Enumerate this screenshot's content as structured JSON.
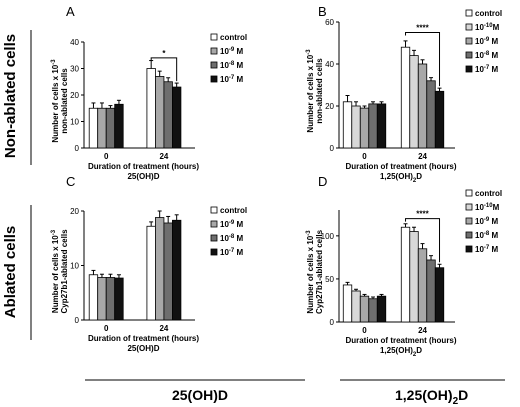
{
  "row_labels": [
    "Non-ablated cells",
    "Ablated cells"
  ],
  "bottom_labels": {
    "left": {
      "main": "25(OH)D",
      "sub": ""
    },
    "right": {
      "main": "1,25(OH)",
      "sub": "2",
      "tail": "D"
    }
  },
  "colors": {
    "control": "#ffffff",
    "c1": "#d8d8d8",
    "c2": "#a8a8a8",
    "c3": "#6e6e6e",
    "c4": "#111111"
  },
  "chart_data": [
    {
      "panel": "A",
      "type": "bar",
      "ylabel": [
        "Number of cells x 10",
        "non-ablated cells"
      ],
      "ylabel_sup": "-3",
      "xlabel": "Duration of treatment (hours)",
      "compound": {
        "main": "25(OH)D",
        "sub": "",
        "tail": ""
      },
      "categories": [
        "0",
        "24"
      ],
      "ylim": [
        0,
        40
      ],
      "yticks": [
        "0",
        "10",
        "20",
        "30",
        "40"
      ],
      "legend": [
        {
          "base": "control",
          "exp": ""
        },
        {
          "base": "10",
          "exp": "-9",
          "unit": " M"
        },
        {
          "base": "10",
          "exp": "-8",
          "unit": " M"
        },
        {
          "base": "10",
          "exp": "-7",
          "unit": " M"
        }
      ],
      "series": [
        {
          "name": "control",
          "color": "control",
          "values": [
            15,
            30
          ],
          "err": [
            2,
            3
          ]
        },
        {
          "name": "10-9 M",
          "color": "c2",
          "values": [
            15,
            27
          ],
          "err": [
            2,
            2
          ]
        },
        {
          "name": "10-8 M",
          "color": "c3",
          "values": [
            15,
            25
          ],
          "err": [
            1,
            1.5
          ]
        },
        {
          "name": "10-7 M",
          "color": "c4",
          "values": [
            16.5,
            23
          ],
          "err": [
            1.5,
            1.5
          ]
        }
      ],
      "sig": {
        "label": "*",
        "from": 0,
        "to": 3,
        "group": 1,
        "y": 34
      }
    },
    {
      "panel": "B",
      "type": "bar",
      "ylabel": [
        "Number of cells x 10",
        "non-ablated cells"
      ],
      "ylabel_sup": "-3",
      "xlabel": "Duration of treatment (hours)",
      "compound": {
        "main": "1,25(OH)",
        "sub": "2",
        "tail": "D"
      },
      "categories": [
        "0",
        "24"
      ],
      "ylim": [
        0,
        60
      ],
      "yticks": [
        "0",
        "20",
        "40",
        "60"
      ],
      "legend": [
        {
          "base": "control",
          "exp": ""
        },
        {
          "base": "10",
          "exp": "-10",
          "unit": "M"
        },
        {
          "base": "10",
          "exp": "-9",
          "unit": " M"
        },
        {
          "base": "10",
          "exp": "-8",
          "unit": " M"
        },
        {
          "base": "10",
          "exp": "-7",
          "unit": " M"
        }
      ],
      "series": [
        {
          "name": "control",
          "color": "control",
          "values": [
            22,
            48
          ],
          "err": [
            3,
            3
          ]
        },
        {
          "name": "10-10M",
          "color": "c1",
          "values": [
            20,
            44
          ],
          "err": [
            2,
            2.5
          ]
        },
        {
          "name": "10-9 M",
          "color": "c2",
          "values": [
            19,
            40
          ],
          "err": [
            1,
            2
          ]
        },
        {
          "name": "10-8 M",
          "color": "c3",
          "values": [
            21,
            32
          ],
          "err": [
            1,
            1.5
          ]
        },
        {
          "name": "10-7 M",
          "color": "c4",
          "values": [
            21,
            27
          ],
          "err": [
            1,
            1.5
          ]
        }
      ],
      "sig": {
        "label": "****",
        "from": 0,
        "to": 4,
        "group": 1,
        "y": 55
      }
    },
    {
      "panel": "C",
      "type": "bar",
      "ylabel": [
        "Number of cells x 10",
        "Cyp27b1-ablated cells"
      ],
      "ylabel_sup": "-3",
      "xlabel": "Duration of treatment (hours)",
      "compound": {
        "main": "25(OH)D",
        "sub": "",
        "tail": ""
      },
      "categories": [
        "0",
        "24"
      ],
      "ylim": [
        0,
        20
      ],
      "yticks": [
        "0",
        "10",
        "20"
      ],
      "legend": [
        {
          "base": "control",
          "exp": ""
        },
        {
          "base": "10",
          "exp": "-9",
          "unit": " M"
        },
        {
          "base": "10",
          "exp": "-8",
          "unit": " M"
        },
        {
          "base": "10",
          "exp": "-7",
          "unit": " M"
        }
      ],
      "series": [
        {
          "name": "control",
          "color": "control",
          "values": [
            8.3,
            17.2
          ],
          "err": [
            0.8,
            0.8
          ]
        },
        {
          "name": "10-9 M",
          "color": "c2",
          "values": [
            7.8,
            18.8
          ],
          "err": [
            0.6,
            1.2
          ]
        },
        {
          "name": "10-8 M",
          "color": "c3",
          "values": [
            7.8,
            17.8
          ],
          "err": [
            0.6,
            1.2
          ]
        },
        {
          "name": "10-7 M",
          "color": "c4",
          "values": [
            7.7,
            18.3
          ],
          "err": [
            0.6,
            1
          ]
        }
      ],
      "sig": null
    },
    {
      "panel": "D",
      "type": "bar",
      "ylabel": [
        "Number of cells x 10",
        "Cyp27b1-ablated cells"
      ],
      "ylabel_sup": "-3",
      "xlabel": "Duration of treatment (hours)",
      "compound": {
        "main": "1,25(OH)",
        "sub": "2",
        "tail": "D"
      },
      "categories": [
        "0",
        "24"
      ],
      "ylim": [
        0,
        130
      ],
      "yticks": [
        "0",
        "50",
        "100"
      ],
      "legend": [
        {
          "base": "control",
          "exp": ""
        },
        {
          "base": "10",
          "exp": "-10",
          "unit": "M"
        },
        {
          "base": "10",
          "exp": "-9",
          "unit": " M"
        },
        {
          "base": "10",
          "exp": "-8",
          "unit": " M"
        },
        {
          "base": "10",
          "exp": "-7",
          "unit": " M"
        }
      ],
      "series": [
        {
          "name": "control",
          "color": "control",
          "values": [
            43,
            110
          ],
          "err": [
            3,
            4
          ]
        },
        {
          "name": "10-10M",
          "color": "c1",
          "values": [
            36,
            105
          ],
          "err": [
            2,
            5
          ]
        },
        {
          "name": "10-9 M",
          "color": "c2",
          "values": [
            30,
            85
          ],
          "err": [
            2,
            6
          ]
        },
        {
          "name": "10-8 M",
          "color": "c3",
          "values": [
            27,
            72
          ],
          "err": [
            2,
            5
          ]
        },
        {
          "name": "10-7 M",
          "color": "c4",
          "values": [
            30,
            63
          ],
          "err": [
            2,
            4
          ]
        }
      ],
      "sig": {
        "label": "****",
        "from": 0,
        "to": 4,
        "group": 1,
        "y": 120
      }
    }
  ]
}
